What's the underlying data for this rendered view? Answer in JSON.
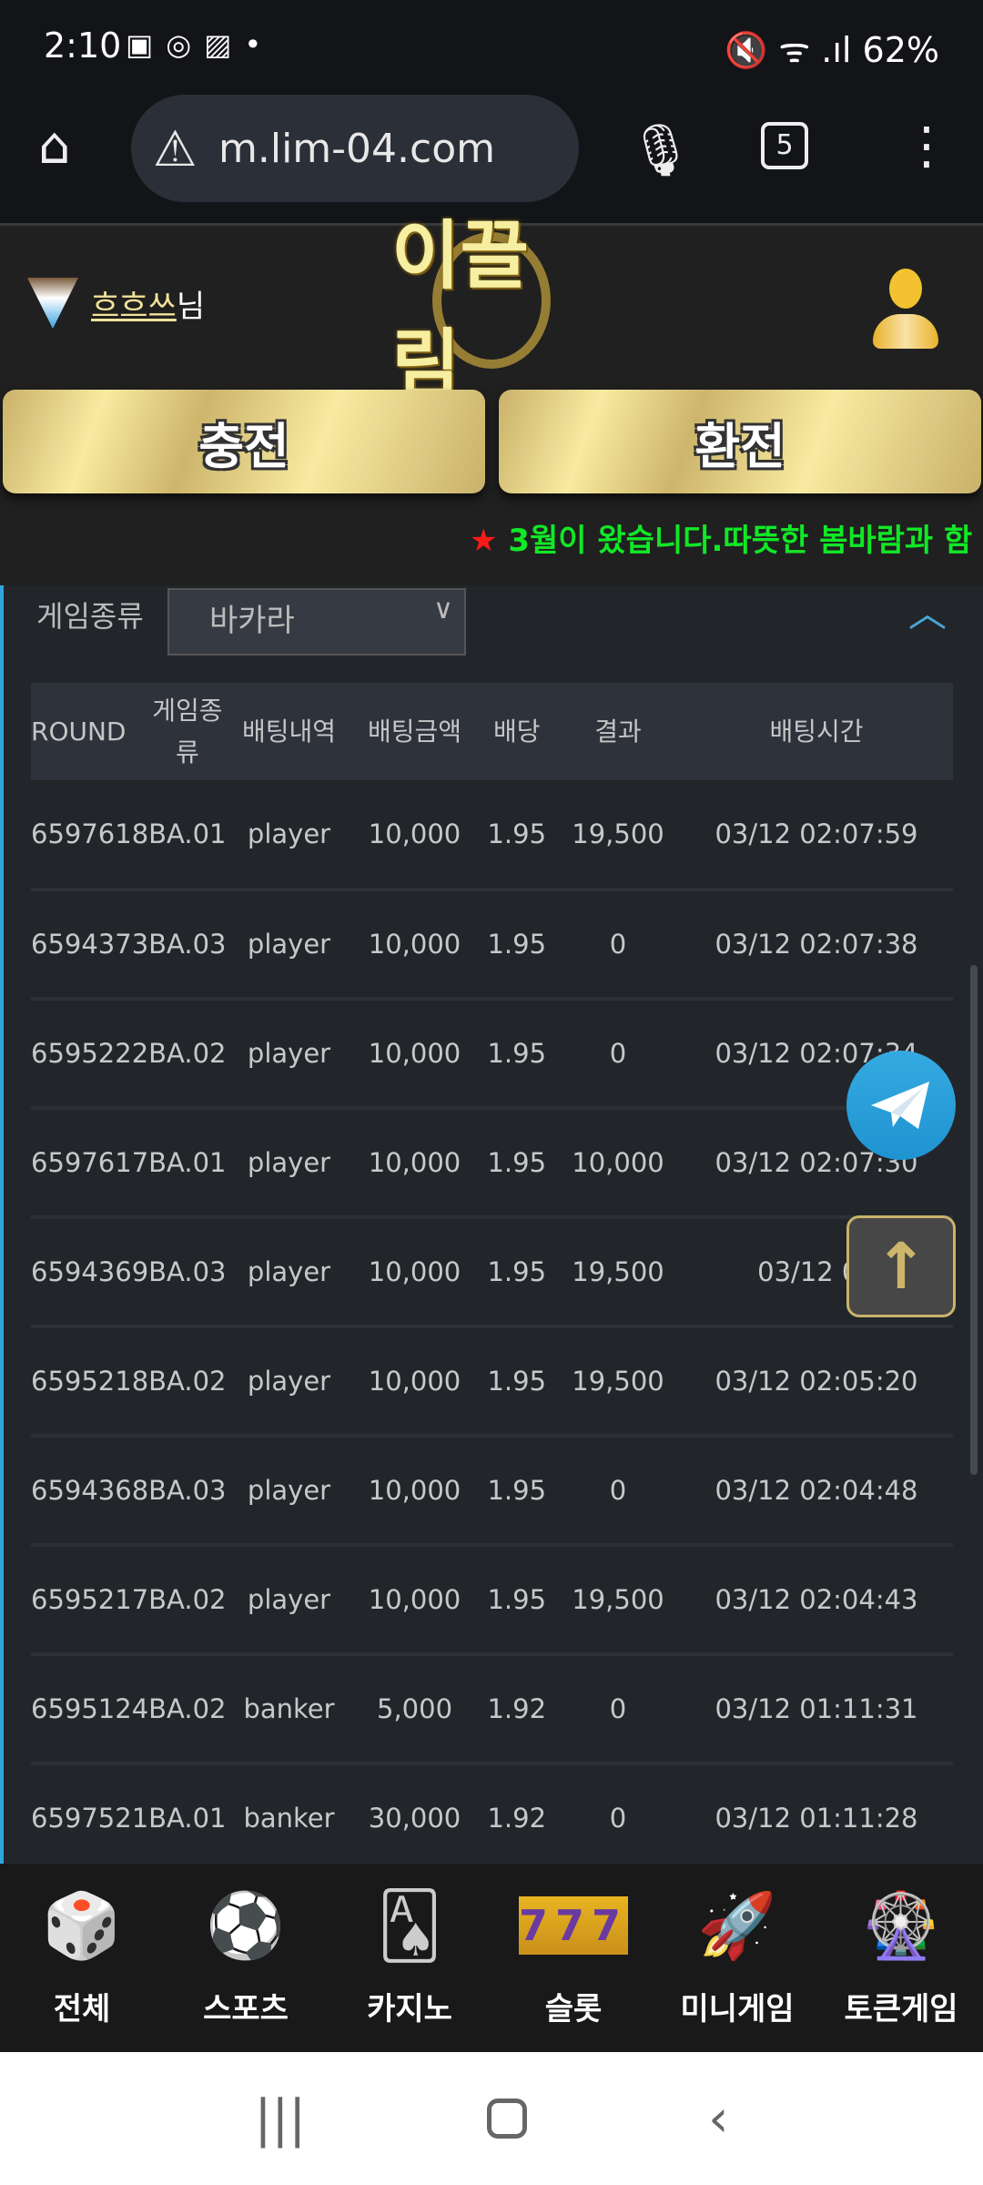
{
  "status_bar": {
    "time": "2:10",
    "battery": "62%"
  },
  "browser": {
    "url": "m.lim-04.com",
    "tab_count": "5"
  },
  "header": {
    "username": "흐흐쓰",
    "username_suffix": "님",
    "logo_text": "이끌림",
    "charge_label": "충전",
    "exchange_label": "환전",
    "notice": "3월이 왔습니다.따뜻한 봄바람과 함"
  },
  "filter": {
    "label": "게임종류",
    "selected": "바카라"
  },
  "table": {
    "headers": [
      "ROUND",
      "게임종류",
      "배팅내역",
      "배팅금액",
      "배당",
      "결과",
      "배팅시간"
    ],
    "rows": [
      [
        "6597618",
        "BA.01",
        "player",
        "10,000",
        "1.95",
        "19,500",
        "03/12 02:07:59"
      ],
      [
        "6594373",
        "BA.03",
        "player",
        "10,000",
        "1.95",
        "0",
        "03/12 02:07:38"
      ],
      [
        "6595222",
        "BA.02",
        "player",
        "10,000",
        "1.95",
        "0",
        "03/12 02:07:34"
      ],
      [
        "6597617",
        "BA.01",
        "player",
        "10,000",
        "1.95",
        "10,000",
        "03/12 02:07:30"
      ],
      [
        "6594369",
        "BA.03",
        "player",
        "10,000",
        "1.95",
        "19,500",
        "03/12 02"
      ],
      [
        "6595218",
        "BA.02",
        "player",
        "10,000",
        "1.95",
        "19,500",
        "03/12 02:05:20"
      ],
      [
        "6594368",
        "BA.03",
        "player",
        "10,000",
        "1.95",
        "0",
        "03/12 02:04:48"
      ],
      [
        "6595217",
        "BA.02",
        "player",
        "10,000",
        "1.95",
        "19,500",
        "03/12 02:04:43"
      ],
      [
        "6595124",
        "BA.02",
        "banker",
        "5,000",
        "1.92",
        "0",
        "03/12 01:11:31"
      ],
      [
        "6597521",
        "BA.01",
        "banker",
        "30,000",
        "1.92",
        "0",
        "03/12 01:11:28"
      ]
    ]
  },
  "bottom_nav": [
    {
      "label": "전체",
      "icon": "dice-icon"
    },
    {
      "label": "스포츠",
      "icon": "soccer-ball-icon"
    },
    {
      "label": "카지노",
      "icon": "playing-card-icon"
    },
    {
      "label": "슬롯",
      "icon": "slot-777-icon",
      "text": "777"
    },
    {
      "label": "미니게임",
      "icon": "rocket-icon"
    },
    {
      "label": "토큰게임",
      "icon": "roulette-icon"
    }
  ],
  "colors": {
    "accent_gold": "#f3e29a",
    "notice_green": "#11e826",
    "panel_border": "#2fa6dc"
  }
}
